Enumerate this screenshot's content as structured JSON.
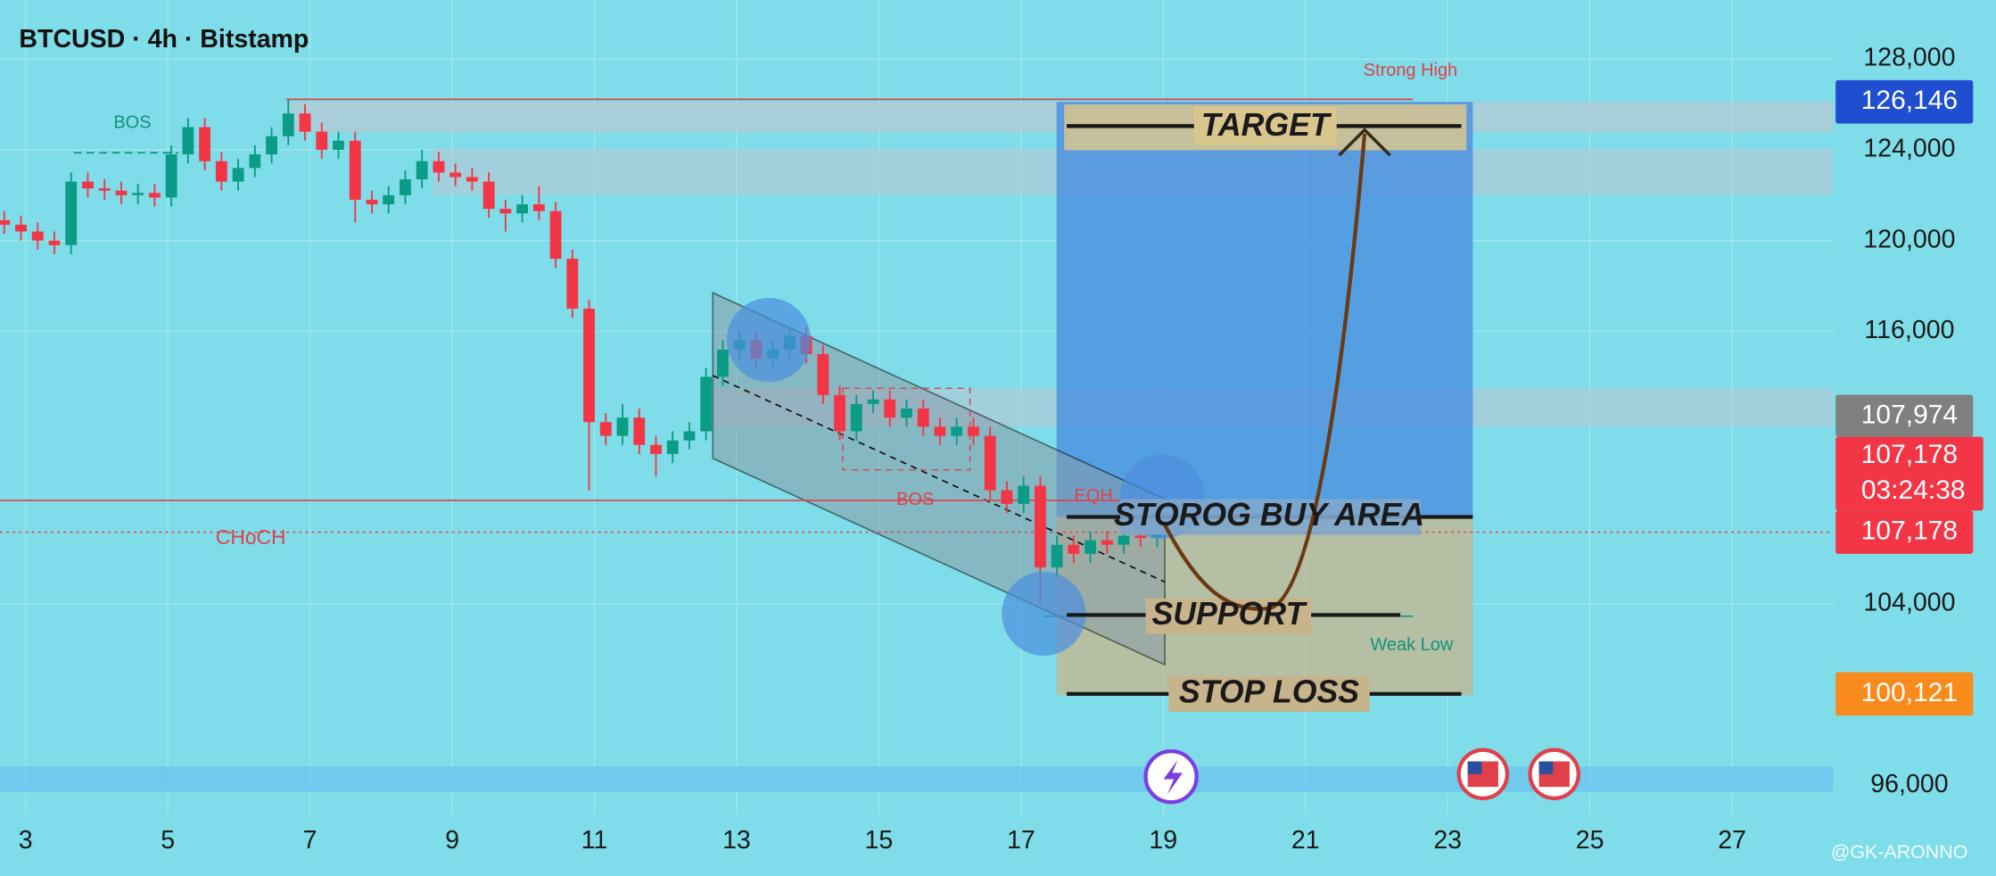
{
  "chart_data": {
    "type": "candlestick",
    "title": "BTCUSD · 4h · Bitstamp",
    "x": [
      2.7,
      2.935,
      3.17,
      3.405,
      3.64,
      3.875,
      4.11,
      4.345,
      4.58,
      4.815,
      5.05,
      5.285,
      5.52,
      5.755,
      5.99,
      6.225,
      6.46,
      6.695,
      6.93,
      7.165,
      7.4,
      7.635,
      7.87,
      8.105,
      8.34,
      8.575,
      8.81,
      9.045,
      9.28,
      9.515,
      9.75,
      9.985,
      10.22,
      10.455,
      10.69,
      10.925,
      11.16,
      11.395,
      11.63,
      11.865,
      12.1,
      12.335,
      12.57,
      12.805,
      13.04,
      13.275,
      13.51,
      13.745,
      13.98,
      14.215,
      14.45,
      14.685,
      14.92,
      15.155,
      15.39,
      15.625,
      15.86,
      16.095,
      16.33,
      16.565,
      16.8,
      17.035,
      17.27,
      17.505,
      17.74,
      17.975,
      18.21,
      18.445,
      18.68,
      18.915
    ],
    "open": [
      120900,
      120700,
      120400,
      120000,
      119800,
      122600,
      122300,
      122200,
      122000,
      122100,
      121900,
      123800,
      125000,
      123500,
      122600,
      123200,
      123800,
      124600,
      125600,
      124800,
      124000,
      124400,
      121800,
      121600,
      122000,
      122700,
      123500,
      123000,
      122800,
      122600,
      121400,
      121200,
      121600,
      121300,
      119200,
      117000,
      112000,
      111400,
      112200,
      111000,
      110600,
      111200,
      111600,
      114000,
      115200,
      115600,
      114800,
      115200,
      115800,
      115000,
      113200,
      111600,
      112800,
      113000,
      112200,
      112600,
      111800,
      111400,
      111800,
      111400,
      109000,
      108400,
      109200,
      105600,
      106600,
      106200,
      106800,
      106600,
      107000,
      106900
    ],
    "high": [
      121300,
      121100,
      120800,
      120400,
      123000,
      123000,
      122700,
      122600,
      122500,
      122500,
      124200,
      125400,
      125400,
      123900,
      123600,
      124200,
      125000,
      126200,
      126000,
      125200,
      124800,
      124800,
      122200,
      122400,
      123100,
      124000,
      123900,
      123400,
      123200,
      123000,
      121800,
      122000,
      122400,
      121700,
      119600,
      117400,
      112400,
      112800,
      112600,
      111400,
      111600,
      112000,
      114400,
      115600,
      116000,
      116000,
      115600,
      116200,
      116200,
      115400,
      113600,
      113200,
      113400,
      113400,
      113000,
      113000,
      112200,
      112200,
      112200,
      111800,
      109400,
      109600,
      109600,
      107000,
      107000,
      107200,
      107200,
      107400,
      107400,
      107500
    ],
    "low": [
      120300,
      120000,
      119600,
      119400,
      119400,
      121900,
      121800,
      121600,
      121600,
      121500,
      121500,
      123400,
      123100,
      122200,
      122200,
      122800,
      123400,
      124200,
      124400,
      123600,
      123600,
      120800,
      121200,
      121200,
      121600,
      122300,
      122600,
      122400,
      122200,
      121000,
      120400,
      120800,
      120900,
      118800,
      116600,
      109000,
      111000,
      111000,
      110600,
      109600,
      110200,
      110800,
      111200,
      113600,
      114800,
      114400,
      114400,
      114800,
      114600,
      112800,
      111200,
      111200,
      112400,
      111800,
      111800,
      111400,
      111000,
      111000,
      111000,
      108600,
      108000,
      108000,
      104000,
      105200,
      105800,
      105800,
      106200,
      106200,
      106500,
      106500
    ],
    "close": [
      120700,
      120400,
      120000,
      119800,
      122600,
      122300,
      122200,
      122000,
      122100,
      121900,
      123800,
      125000,
      123500,
      122600,
      123200,
      123800,
      124600,
      125600,
      124800,
      124000,
      124400,
      121800,
      121600,
      122000,
      122700,
      123500,
      123000,
      122800,
      122600,
      121400,
      121200,
      121600,
      121300,
      119200,
      117000,
      112000,
      111400,
      112200,
      111000,
      110600,
      111200,
      111600,
      114000,
      115200,
      115600,
      114800,
      115200,
      115800,
      115000,
      113200,
      111600,
      112800,
      113000,
      112200,
      112600,
      111800,
      111400,
      111800,
      111400,
      109000,
      108400,
      109200,
      105600,
      106600,
      106200,
      106800,
      106600,
      107000,
      106900,
      107178
    ],
    "up_color": "#0a9c86",
    "down_color": "#f23645",
    "xlim": [
      2.64,
      28.42
    ],
    "xticks": [
      3,
      5,
      7,
      9,
      11,
      13,
      15,
      17,
      19,
      21,
      23,
      25,
      27
    ],
    "ylim": [
      94700,
      130600
    ],
    "yticks": [
      {
        "value": 96000,
        "label": "96,000"
      },
      {
        "value": 104000,
        "label": "104,000"
      },
      {
        "value": 116000,
        "label": "116,000"
      },
      {
        "value": 120000,
        "label": "120,000"
      },
      {
        "value": 124000,
        "label": "124,000"
      },
      {
        "value": 128000,
        "label": "128,000"
      }
    ],
    "grid": true
  },
  "annotations": {
    "strong_high": "Strong High",
    "target": "TARGET",
    "buy_area": "STOROG BUY AREA",
    "support": "SUPPORT",
    "stop_loss": "STOP LOSS",
    "weak_low": "Weak Low",
    "bos_1": "BOS",
    "bos_2": "BOS",
    "choch": "CHoCH",
    "eqh": "EQH"
  },
  "price_labels": [
    "126,146",
    "107,974",
    "107,178",
    "03:24:38",
    "107,178",
    "100,121"
  ],
  "watermark": "@GK-ARONNO"
}
